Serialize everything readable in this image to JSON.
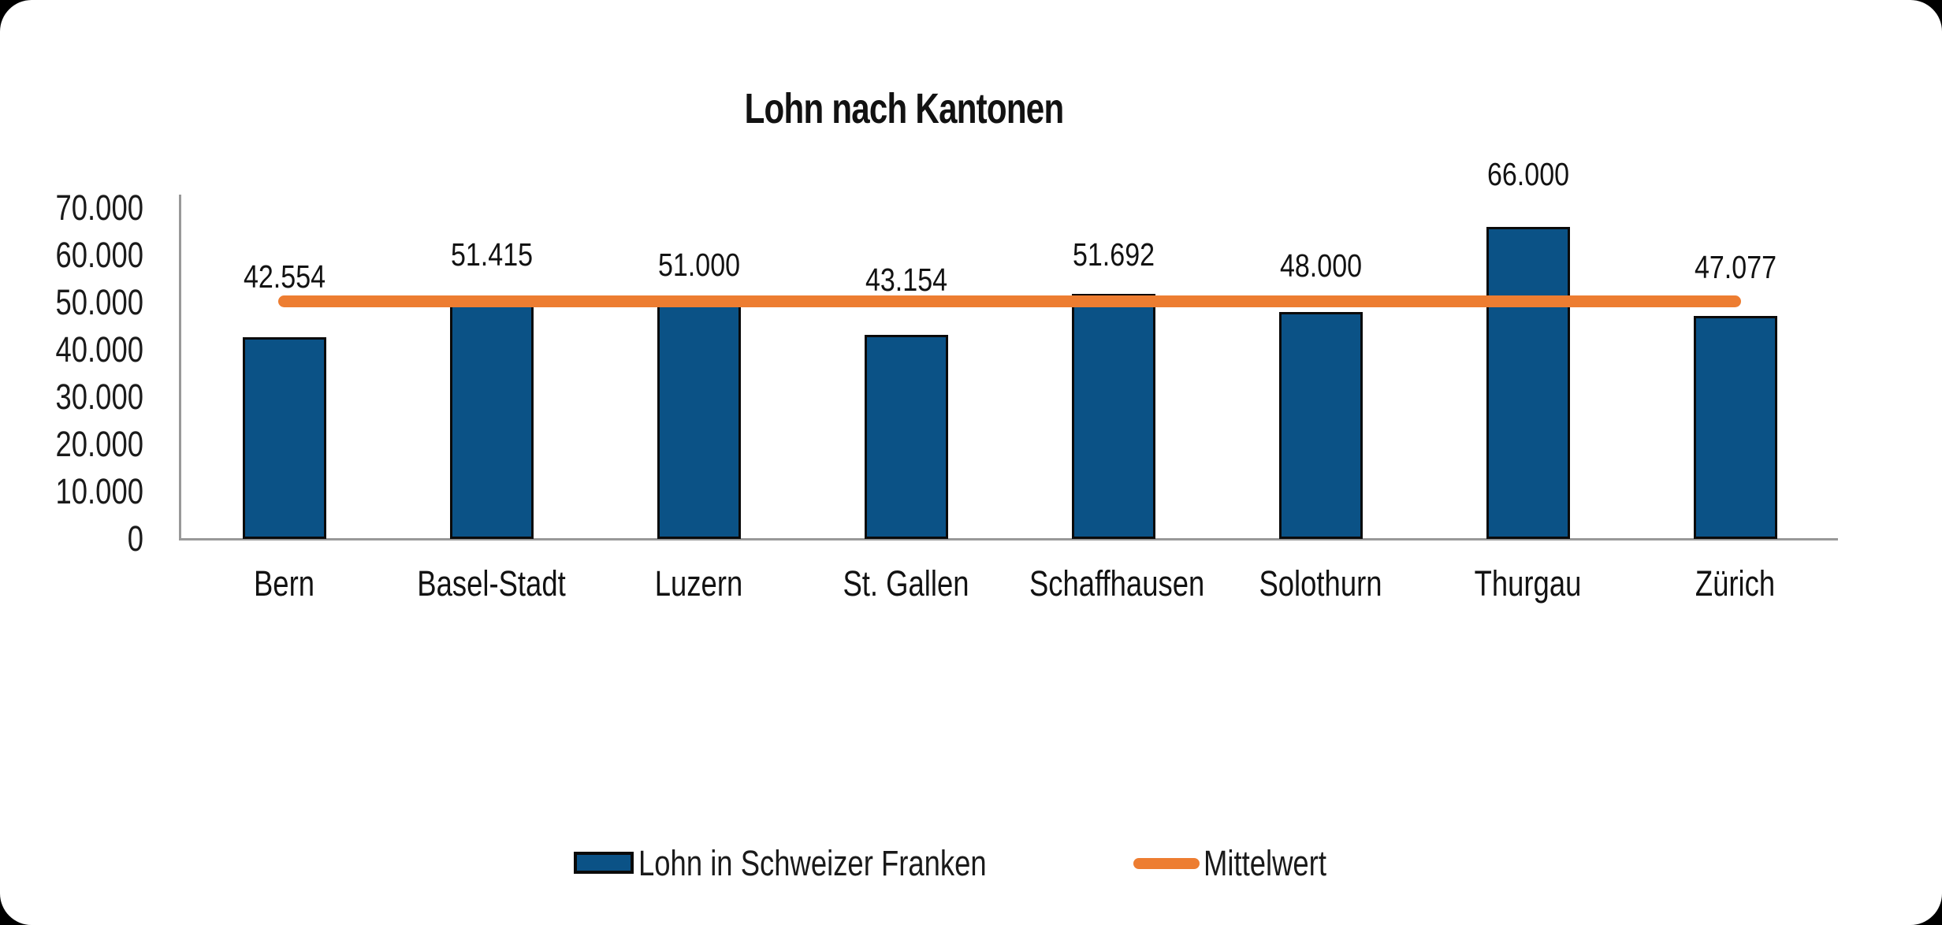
{
  "chart_data": {
    "type": "bar",
    "title": "Lohn nach Kantonen",
    "categories": [
      "Bern",
      "Basel-Stadt",
      "Luzern",
      "St. Gallen",
      "Schaffhausen",
      "Solothurn",
      "Thurgau",
      "Zürich"
    ],
    "series": [
      {
        "name": "Lohn in Schweizer Franken",
        "type": "bar",
        "color": "#0B5286",
        "bar_border_color": "#000000",
        "values": [
          42554,
          51415,
          51000,
          43154,
          51692,
          48000,
          66000,
          47077
        ],
        "data_labels": [
          "42.554",
          "51.415",
          "51.000",
          "43.154",
          "51.692",
          "48.000",
          "66.000",
          "47.077"
        ]
      },
      {
        "name": "Mittelwert",
        "type": "line",
        "color": "#ED7D31",
        "value": 50112
      }
    ],
    "y_axis": {
      "min": 0,
      "max": 70000,
      "ticks": [
        {
          "label": "70.000",
          "value": 70000
        },
        {
          "label": "60.000",
          "value": 60000
        },
        {
          "label": "50.000",
          "value": 50000
        },
        {
          "label": "40.000",
          "value": 40000
        },
        {
          "label": "30.000",
          "value": 30000
        },
        {
          "label": "20.000",
          "value": 20000
        },
        {
          "label": "10.000",
          "value": 10000
        },
        {
          "label": "0",
          "value": 0
        }
      ],
      "axis_color": "#999999"
    },
    "xlabel": "",
    "ylabel": "",
    "grid": false,
    "legend": {
      "position": "bottom",
      "entries": [
        "Lohn in Schweizer Franken",
        "Mittelwert"
      ]
    },
    "background_color": "#FFFFFF"
  }
}
